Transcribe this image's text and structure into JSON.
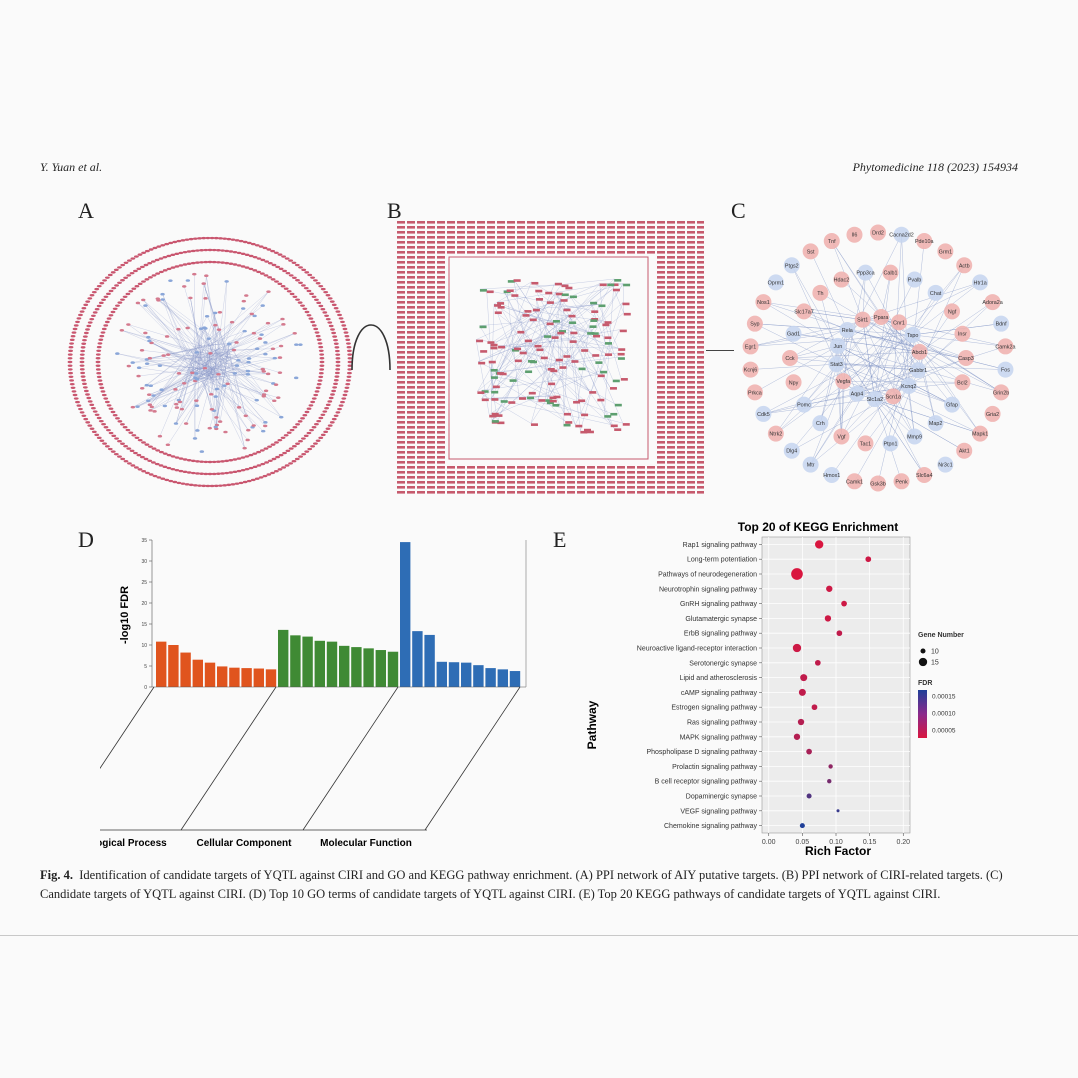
{
  "header": {
    "left": "Y. Yuan et al.",
    "right": "Phytomedicine 118 (2023) 154934"
  },
  "panels": {
    "a": "A",
    "b": "B",
    "c": "C",
    "d": "D",
    "e": "E"
  },
  "network_c": {
    "nodes": [
      "Drd2",
      "Cacna2d2",
      "Pde10a",
      "Grm1",
      "Actb",
      "Htr1a",
      "Adora2a",
      "Bdnf",
      "Camk2a",
      "Fos",
      "Grin2b",
      "Gria2",
      "Mapk1",
      "Akt1",
      "Nr3c1",
      "Slc6a4",
      "Penk",
      "Gsk3b",
      "Camk1",
      "Hmox1",
      "Mtr",
      "Dlg4",
      "Ntrk2",
      "Cdk5",
      "Prkca",
      "Kcnj6",
      "Egr1",
      "Syp",
      "Nos1",
      "Oprm1",
      "Ptgs2",
      "Sst",
      "Tnf",
      "Il6",
      "Casp3",
      "Bcl2",
      "Gfap",
      "Map2",
      "Mmp9",
      "Ptpn1",
      "Tac1",
      "Vgf",
      "Crh",
      "Pomc",
      "Npy",
      "Cck",
      "Gad1",
      "Slc17a7",
      "Th",
      "Hdac2",
      "Ppp3ca",
      "Calb1",
      "Pvalb",
      "Chat",
      "Ngf",
      "Insr",
      "Gabbr1",
      "Kcnq2",
      "Scn1a",
      "Slc1a2",
      "Aqp4",
      "Vegfa",
      "Stat3",
      "Jun",
      "Rela",
      "Sirt1",
      "Ppara",
      "Cnr1",
      "Tspo",
      "Abcb1"
    ]
  },
  "panel_d": {
    "y_label": "-log10 FDR",
    "y_ticks": [
      "0",
      "5",
      "10",
      "15",
      "20",
      "25",
      "30",
      "35"
    ],
    "groups": [
      "Biological Process",
      "Cellular Component",
      "Molecular Function"
    ],
    "group_colors": [
      "#e0541e",
      "#3f8a34",
      "#2e6db5"
    ],
    "chart_data": {
      "type": "bar",
      "ylim": [
        0,
        35
      ],
      "ylabel": "-log10 FDR",
      "series": [
        {
          "values": [
            10.8,
            10.0,
            8.2,
            6.5,
            5.8,
            4.9,
            4.6,
            4.5,
            4.4,
            4.2
          ]
        },
        {
          "values": [
            13.6,
            12.3,
            12.0,
            11.0,
            10.8,
            9.8,
            9.5,
            9.2,
            8.8,
            8.4
          ]
        },
        {
          "values": [
            34.5,
            13.3,
            12.4,
            6.0,
            5.9,
            5.8,
            5.2,
            4.5,
            4.2,
            3.8
          ]
        }
      ]
    }
  },
  "panel_e": {
    "chart_data": {
      "type": "scatter",
      "title": "Top 20 of KEGG Enrichment",
      "xlabel": "Rich Factor",
      "ylabel": "Pathway",
      "xlim": [
        -0.01,
        0.21
      ],
      "x_ticks": [
        "0.00",
        "0.05",
        "0.10",
        "0.15",
        "0.20"
      ],
      "categories": [
        "Rap1 signaling pathway",
        "Long-term potentiation",
        "Pathways of neurodegeneration",
        "Neurotrophin signaling pathway",
        "GnRH signaling pathway",
        "Glutamatergic synapse",
        "ErbB signaling pathway",
        "Neuroactive ligand-receptor interaction",
        "Serotonergic synapse",
        "Lipid and atherosclerosis",
        "cAMP signaling pathway",
        "Estrogen signaling pathway",
        "Ras signaling pathway",
        "MAPK signaling pathway",
        "Phospholipase D signaling pathway",
        "Prolactin signaling pathway",
        "B cell receptor signaling pathway",
        "Dopaminergic synapse",
        "VEGF signaling pathway",
        "Chemokine signaling pathway"
      ],
      "rich_factor": [
        0.075,
        0.148,
        0.042,
        0.09,
        0.112,
        0.088,
        0.105,
        0.042,
        0.073,
        0.052,
        0.05,
        0.068,
        0.048,
        0.042,
        0.06,
        0.092,
        0.09,
        0.06,
        0.103,
        0.05
      ],
      "gene_number": [
        15,
        11,
        20,
        12,
        11,
        12,
        11,
        15,
        11,
        13,
        13,
        11,
        12,
        12,
        11,
        9,
        9,
        10,
        7,
        10
      ],
      "fdr": [
        1e-05,
        2e-05,
        1e-05,
        2e-05,
        2e-05,
        2e-05,
        3e-05,
        2e-05,
        3e-05,
        3e-05,
        3e-05,
        3e-05,
        4e-05,
        4e-05,
        5e-05,
        7e-05,
        9e-05,
        0.00012,
        0.00014,
        0.00016
      ],
      "legend_size_title": "Gene Number",
      "legend_size_values": [
        "10",
        "15"
      ],
      "legend_color_title": "FDR",
      "legend_color_ticks": [
        "0.00015",
        "0.00010",
        "0.00005"
      ],
      "color_low": "#d9163f",
      "color_high": "#1f3f98"
    }
  },
  "caption": {
    "label": "Fig. 4.",
    "text": "Identification of candidate targets of YQTL against CIRI and GO and KEGG pathway enrichment. (A) PPI network of AIY putative targets. (B) PPI network of CIRI-related targets. (C) Candidate targets of YQTL against CIRI. (D) Top 10 GO terms of candidate targets of YQTL against CIRI. (E) Top 20 KEGG pathways of candidate targets of YQTL against CIRI."
  }
}
